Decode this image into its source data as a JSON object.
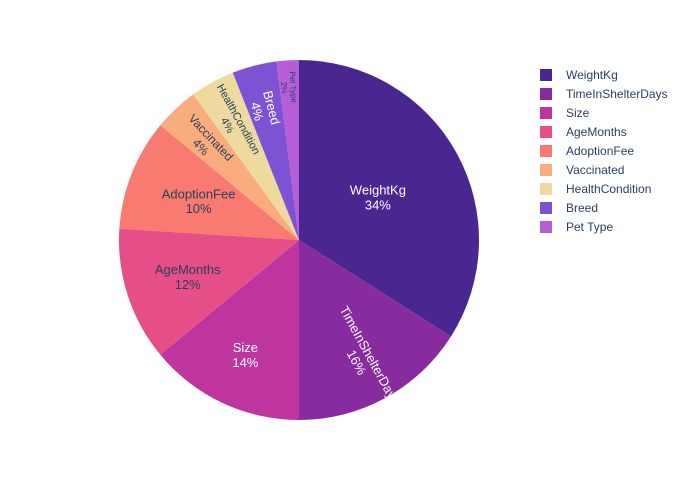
{
  "chart_data": {
    "type": "pie",
    "labels": [
      "WeightKg",
      "TimeInShelterDays",
      "Size",
      "AgeMonths",
      "AdoptionFee",
      "Vaccinated",
      "HealthCondition",
      "Breed",
      "Pet Type"
    ],
    "values": [
      34,
      16,
      14,
      12,
      10,
      4,
      4,
      4,
      2
    ],
    "text": [
      "34%",
      "16%",
      "14%",
      "12%",
      "10%",
      "4%",
      "4%",
      "4%",
      "2%"
    ],
    "colors": [
      "#4a2790",
      "#882b9f",
      "#bf359f",
      "#e54e86",
      "#f87a71",
      "#f9ac7e",
      "#eeda9f",
      "#7d52d3",
      "#b65ed8"
    ],
    "text_colors": [
      "#ffffff",
      "#ffffff",
      "#ffffff",
      "#2a3f5f",
      "#2a3f5f",
      "#2a3f5f",
      "#2a3f5f",
      "#ffffff",
      "#2a3f5f"
    ],
    "direction": "clockwise",
    "legend_position": "top-right"
  }
}
